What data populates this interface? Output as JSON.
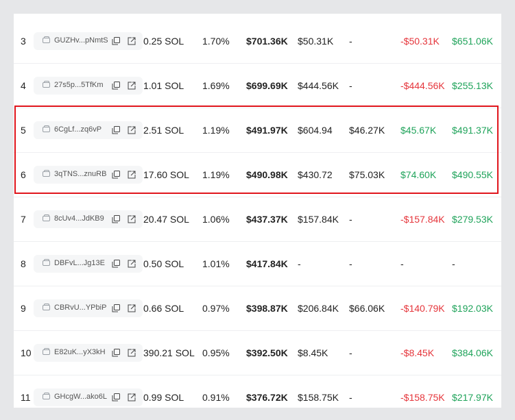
{
  "colors": {
    "negative": "#e5353b",
    "positive": "#1fa35a",
    "highlight": "#e0141b"
  },
  "holders": [
    {
      "rank": "3",
      "address": "GUZHv...pNmtS",
      "sol": "0.25 SOL",
      "pct": "1.70%",
      "value": "$701.36K",
      "bought": "$50.31K",
      "sold": "-",
      "pnl": "-$50.31K",
      "pnl_sign": "red",
      "unrealized": "$651.06K",
      "unrealized_sign": "green"
    },
    {
      "rank": "4",
      "address": "27s5p...5TfKm",
      "sol": "1.01 SOL",
      "pct": "1.69%",
      "value": "$699.69K",
      "bought": "$444.56K",
      "sold": "-",
      "pnl": "-$444.56K",
      "pnl_sign": "red",
      "unrealized": "$255.13K",
      "unrealized_sign": "green"
    },
    {
      "rank": "5",
      "address": "6CgLf...zq6vP",
      "sol": "2.51 SOL",
      "pct": "1.19%",
      "value": "$491.97K",
      "bought": "$604.94",
      "sold": "$46.27K",
      "pnl": "$45.67K",
      "pnl_sign": "green",
      "unrealized": "$491.37K",
      "unrealized_sign": "green"
    },
    {
      "rank": "6",
      "address": "3qTNS...znuRB",
      "sol": "17.60 SOL",
      "pct": "1.19%",
      "value": "$490.98K",
      "bought": "$430.72",
      "sold": "$75.03K",
      "pnl": "$74.60K",
      "pnl_sign": "green",
      "unrealized": "$490.55K",
      "unrealized_sign": "green"
    },
    {
      "rank": "7",
      "address": "8cUv4...JdKB9",
      "sol": "20.47 SOL",
      "pct": "1.06%",
      "value": "$437.37K",
      "bought": "$157.84K",
      "sold": "-",
      "pnl": "-$157.84K",
      "pnl_sign": "red",
      "unrealized": "$279.53K",
      "unrealized_sign": "green"
    },
    {
      "rank": "8",
      "address": "DBFvL...Jg13E",
      "sol": "0.50 SOL",
      "pct": "1.01%",
      "value": "$417.84K",
      "bought": "-",
      "sold": "-",
      "pnl": "-",
      "pnl_sign": "plain",
      "unrealized": "-",
      "unrealized_sign": "plain"
    },
    {
      "rank": "9",
      "address": "CBRvU...YPbiP",
      "sol": "0.66 SOL",
      "pct": "0.97%",
      "value": "$398.87K",
      "bought": "$206.84K",
      "sold": "$66.06K",
      "pnl": "-$140.79K",
      "pnl_sign": "red",
      "unrealized": "$192.03K",
      "unrealized_sign": "green"
    },
    {
      "rank": "10",
      "address": "E82uK...yX3kH",
      "sol": "390.21 SOL",
      "pct": "0.95%",
      "value": "$392.50K",
      "bought": "$8.45K",
      "sold": "-",
      "pnl": "-$8.45K",
      "pnl_sign": "red",
      "unrealized": "$384.06K",
      "unrealized_sign": "green"
    },
    {
      "rank": "11",
      "address": "GHcgW...ako6L",
      "sol": "0.99 SOL",
      "pct": "0.91%",
      "value": "$376.72K",
      "bought": "$158.75K",
      "sold": "-",
      "pnl": "-$158.75K",
      "pnl_sign": "red",
      "unrealized": "$217.97K",
      "unrealized_sign": "green"
    }
  ]
}
